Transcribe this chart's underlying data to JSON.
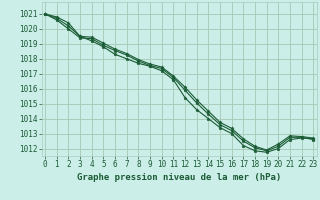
{
  "background_color": "#cceee8",
  "grid_color": "#aaccbb",
  "line_color": "#1a5c35",
  "marker_color": "#1a5c35",
  "title": "Graphe pression niveau de la mer (hPa)",
  "title_fontsize": 6.5,
  "tick_fontsize": 5.5,
  "xlim": [
    -0.3,
    23.3
  ],
  "ylim": [
    1011.5,
    1021.8
  ],
  "yticks": [
    1012,
    1013,
    1014,
    1015,
    1016,
    1017,
    1018,
    1019,
    1020,
    1021
  ],
  "xticks": [
    0,
    1,
    2,
    3,
    4,
    5,
    6,
    7,
    8,
    9,
    10,
    11,
    12,
    13,
    14,
    15,
    16,
    17,
    18,
    19,
    20,
    21,
    22,
    23
  ],
  "series": [
    [
      1021.0,
      1020.8,
      1020.4,
      1019.5,
      1019.2,
      1018.8,
      1018.3,
      1018.0,
      1017.7,
      1017.5,
      1017.2,
      1016.6,
      1015.4,
      1014.6,
      1014.0,
      1013.4,
      1013.0,
      1012.2,
      1011.85,
      1011.75,
      1012.0,
      1012.6,
      1012.7,
      1012.65
    ],
    [
      1021.0,
      1020.6,
      1020.0,
      1019.4,
      1019.35,
      1018.9,
      1018.55,
      1018.25,
      1017.85,
      1017.55,
      1017.35,
      1016.75,
      1015.9,
      1015.05,
      1014.3,
      1013.6,
      1013.2,
      1012.5,
      1012.05,
      1011.85,
      1012.15,
      1012.75,
      1012.75,
      1012.6
    ],
    [
      1021.0,
      1020.7,
      1020.2,
      1019.5,
      1019.45,
      1019.05,
      1018.65,
      1018.35,
      1017.95,
      1017.65,
      1017.45,
      1016.85,
      1016.1,
      1015.25,
      1014.5,
      1013.75,
      1013.35,
      1012.65,
      1012.15,
      1011.9,
      1012.3,
      1012.85,
      1012.8,
      1012.7
    ]
  ]
}
